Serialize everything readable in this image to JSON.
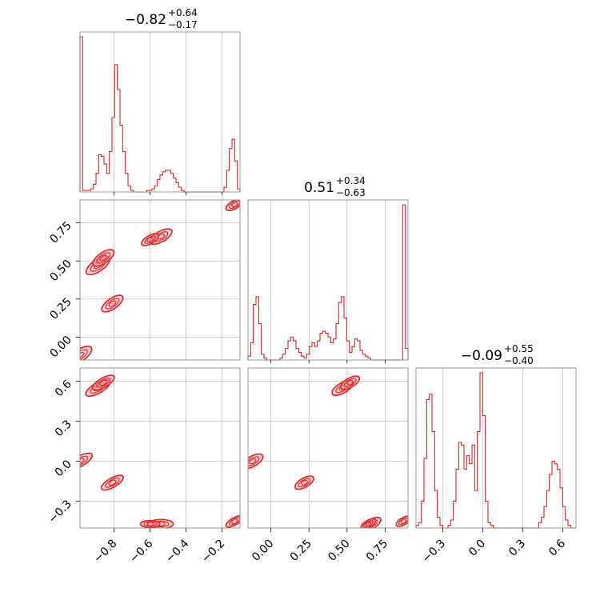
{
  "chart_data": {
    "type": "corner",
    "grid": true,
    "colors": {
      "line": "#d62728",
      "fill": "#f4a3a4",
      "grid": "#b0b0b0",
      "frame": "#808080"
    },
    "titles": [
      {
        "value": "−0.82",
        "upper": "+0.64",
        "lower": "−0.17"
      },
      {
        "value": "0.51",
        "upper": "+0.34",
        "lower": "−0.63"
      },
      {
        "value": "−0.09",
        "upper": "+0.55",
        "lower": "−0.40"
      }
    ],
    "params": [
      {
        "range": [
          -0.99,
          -0.1
        ],
        "ticks": [
          -0.8,
          -0.6,
          -0.4,
          -0.2
        ],
        "tick_labels": [
          "−0.8",
          "−0.6",
          "−0.4",
          "−0.2"
        ]
      },
      {
        "range": [
          -0.15,
          0.9
        ],
        "ticks": [
          0.0,
          0.25,
          0.5,
          0.75
        ],
        "tick_labels": [
          "0.00",
          "0.25",
          "0.50",
          "0.75"
        ]
      },
      {
        "range": [
          -0.5,
          0.7
        ],
        "ticks": [
          -0.3,
          0.0,
          0.3,
          0.6
        ],
        "tick_labels": [
          "−0.3",
          "0.0",
          "0.3",
          "0.6"
        ]
      }
    ],
    "histograms": [
      {
        "edges_range": [
          -0.99,
          -0.1
        ],
        "bins": 60,
        "counts": [
          1.0,
          0.01,
          0.01,
          0.01,
          0.02,
          0.05,
          0.12,
          0.24,
          0.23,
          0.18,
          0.12,
          0.26,
          0.48,
          0.82,
          0.66,
          0.43,
          0.26,
          0.12,
          0.04,
          0.01,
          0.0,
          0.0,
          0.0,
          0.0,
          0.0,
          0.01,
          0.01,
          0.02,
          0.04,
          0.08,
          0.11,
          0.13,
          0.14,
          0.14,
          0.12,
          0.09,
          0.06,
          0.03,
          0.01,
          0.0,
          0.0,
          0.0,
          0.0,
          0.0,
          0.0,
          0.0,
          0.0,
          0.0,
          0.0,
          0.0,
          0.0,
          0.0,
          0.0,
          0.0,
          0.03,
          0.14,
          0.28,
          0.34,
          0.2,
          0.02
        ]
      },
      {
        "edges_range": [
          -0.15,
          0.9
        ],
        "bins": 60,
        "counts": [
          0.02,
          0.09,
          0.29,
          0.33,
          0.19,
          0.03,
          0.01,
          0.0,
          0.0,
          0.0,
          0.0,
          0.0,
          0.01,
          0.03,
          0.06,
          0.1,
          0.12,
          0.1,
          0.06,
          0.04,
          0.02,
          0.01,
          0.03,
          0.07,
          0.09,
          0.07,
          0.1,
          0.14,
          0.15,
          0.14,
          0.12,
          0.09,
          0.11,
          0.19,
          0.3,
          0.33,
          0.22,
          0.1,
          0.04,
          0.07,
          0.11,
          0.1,
          0.05,
          0.03,
          0.02,
          0.01,
          0.0,
          0.0,
          0.0,
          0.0,
          0.0,
          0.0,
          0.0,
          0.0,
          0.0,
          0.0,
          0.0,
          0.0,
          0.81,
          0.06
        ]
      },
      {
        "edges_range": [
          -0.5,
          0.7
        ],
        "bins": 60,
        "counts": [
          0.01,
          0.02,
          0.1,
          0.26,
          0.48,
          0.5,
          0.36,
          0.14,
          0.04,
          0.01,
          0.0,
          0.0,
          0.01,
          0.03,
          0.1,
          0.22,
          0.32,
          0.31,
          0.22,
          0.27,
          0.24,
          0.31,
          0.14,
          0.36,
          0.58,
          0.42,
          0.1,
          0.02,
          0.01,
          0.0,
          0.0,
          0.0,
          0.0,
          0.0,
          0.0,
          0.0,
          0.0,
          0.0,
          0.0,
          0.0,
          0.0,
          0.0,
          0.0,
          0.0,
          0.0,
          0.0,
          0.02,
          0.04,
          0.08,
          0.14,
          0.2,
          0.25,
          0.24,
          0.22,
          0.15,
          0.08,
          0.03,
          0.01,
          0.0,
          0.0
        ]
      }
    ],
    "modes": [
      [
        -0.99,
        -0.12,
        0.0,
        0.02
      ],
      [
        -0.89,
        0.47,
        0.55,
        0.02
      ],
      [
        -0.86,
        0.52,
        0.59,
        0.018
      ],
      [
        -0.81,
        0.22,
        -0.16,
        0.018
      ],
      [
        -0.54,
        0.66,
        -0.47,
        0.018
      ],
      [
        -0.6,
        0.64,
        -0.47,
        0.014
      ],
      [
        -0.13,
        0.87,
        -0.45,
        0.014
      ]
    ]
  }
}
